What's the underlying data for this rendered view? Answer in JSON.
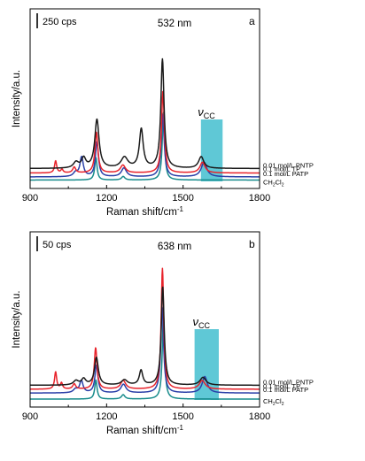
{
  "chart_data": [
    {
      "type": "line",
      "panel_letter": "a",
      "wavelength_label": "532 nm",
      "scale_bar_label": "250 cps",
      "xlabel": "Raman shift/cm",
      "xlabel_superscript": "-1",
      "ylabel": "Intensity/a.u.",
      "xlim": [
        900,
        1800
      ],
      "xticks": [
        "900",
        "1200",
        "1500",
        "1800"
      ],
      "band_label": "ν",
      "band_label_sub": "CC",
      "band_range": [
        1570,
        1655
      ],
      "series": [
        {
          "name": "0.01 mol/L PNTP",
          "color": "#1a1a1a",
          "baseline": 0.66,
          "peaks": [
            [
              1080,
              0.3,
              12
            ],
            [
              1110,
              0.5,
              10
            ],
            [
              1162,
              2.5,
              10
            ],
            [
              1270,
              0.55,
              16
            ],
            [
              1336,
              2.0,
              9
            ],
            [
              1419,
              5.6,
              7.5
            ],
            [
              1571,
              0.6,
              12
            ]
          ]
        },
        {
          "name": "0.1 mol/L TP",
          "color": "#e8232b",
          "baseline": 0.43,
          "peaks": [
            [
              1000,
              0.62,
              5
            ],
            [
              1025,
              0.18,
              5
            ],
            [
              1073,
              0.3,
              7
            ],
            [
              1160,
              2.1,
              7
            ],
            [
              1264,
              0.4,
              12
            ],
            [
              1421,
              4.2,
              6.5
            ],
            [
              1576,
              0.55,
              12
            ]
          ]
        },
        {
          "name": "0.1 mol/L PATP",
          "color": "#2a3fa8",
          "baseline": 0.23,
          "peaks": [
            [
              1078,
              0.2,
              10
            ],
            [
              1102,
              1.0,
              8
            ],
            [
              1162,
              1.8,
              7
            ],
            [
              1268,
              0.45,
              12
            ],
            [
              1420,
              3.2,
              7
            ],
            [
              1582,
              0.75,
              13
            ]
          ]
        },
        {
          "name": "CH2Cl2",
          "name_base": "CH",
          "name_sub1": "2",
          "name_mid": "Cl",
          "name_sub2": "2",
          "color": "#178b8b",
          "baseline": 0.07,
          "peaks": [
            [
              1158,
              1.15,
              5.5
            ],
            [
              1265,
              0.18,
              8
            ],
            [
              1423,
              3.5,
              5.5
            ]
          ]
        }
      ]
    },
    {
      "type": "line",
      "panel_letter": "b",
      "wavelength_label": "638 nm",
      "scale_bar_label": "50 cps",
      "xlabel": "Raman shift/cm",
      "xlabel_superscript": "-1",
      "ylabel": "Intensity/a.u.",
      "xlim": [
        900,
        1800
      ],
      "xticks": [
        "900",
        "1200",
        "1500",
        "1800"
      ],
      "band_label": "ν",
      "band_label_sub": "CC",
      "band_range": [
        1545,
        1640
      ],
      "series": [
        {
          "name": "0.01 mol/L PNTP",
          "color": "#1a1a1a",
          "baseline": 0.85,
          "peaks": [
            [
              1080,
              0.25,
              12
            ],
            [
              1110,
              0.35,
              10
            ],
            [
              1160,
              1.6,
              9
            ],
            [
              1270,
              0.3,
              14
            ],
            [
              1335,
              0.85,
              8
            ],
            [
              1420,
              5.7,
              7
            ],
            [
              1578,
              0.45,
              14
            ]
          ]
        },
        {
          "name": "0.1 mol/L TP",
          "color": "#e8232b",
          "baseline": 0.62,
          "peaks": [
            [
              1000,
              1.0,
              5
            ],
            [
              1023,
              0.35,
              5
            ],
            [
              1073,
              0.3,
              7
            ],
            [
              1157,
              2.4,
              6.5
            ],
            [
              1265,
              0.5,
              12
            ],
            [
              1419,
              7.0,
              6
            ],
            [
              1575,
              0.5,
              14
            ]
          ]
        },
        {
          "name": "0.1 mol/L PATP",
          "color": "#2a3fa8",
          "baseline": 0.4,
          "peaks": [
            [
              1078,
              0.2,
              10
            ],
            [
              1101,
              0.7,
              8
            ],
            [
              1160,
              1.6,
              7
            ],
            [
              1266,
              0.5,
              12
            ],
            [
              1418,
              5.0,
              6.5
            ],
            [
              1585,
              0.95,
              12
            ]
          ]
        },
        {
          "name": "CH2Cl2",
          "name_base": "CH",
          "name_sub1": "2",
          "name_mid": "Cl",
          "name_sub2": "2",
          "color": "#178b8b",
          "baseline": 0.05,
          "peaks": [
            [
              1158,
              1.1,
              5.5
            ],
            [
              1265,
              0.25,
              8
            ],
            [
              1423,
              4.9,
              5.5
            ]
          ]
        }
      ]
    }
  ]
}
